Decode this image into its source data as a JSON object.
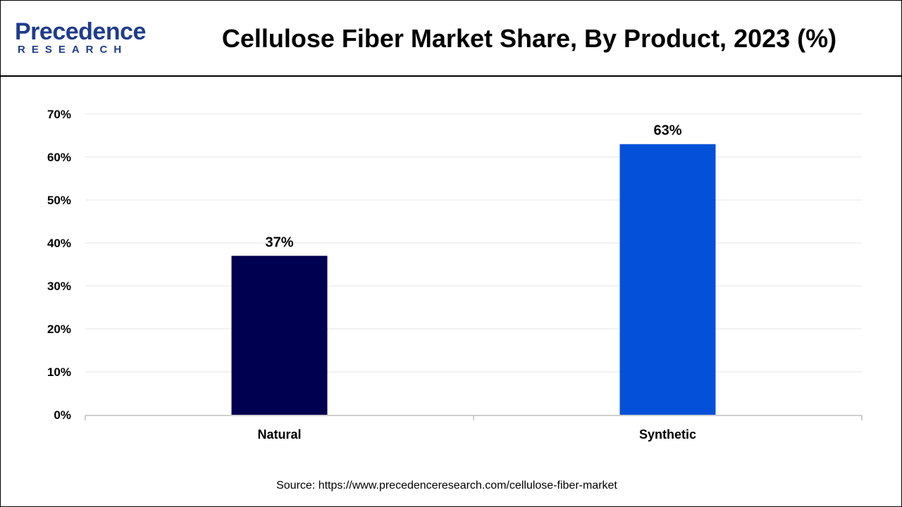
{
  "logo": {
    "wordmark": "Precedence",
    "subline": "RESEARCH"
  },
  "colors": {
    "natural": "#000050",
    "synthetic": "#0550d8",
    "logo": "#1f3c8c"
  },
  "source": "Source: https://www.precedenceresearch.com/cellulose-fiber-market",
  "chart_data": {
    "type": "bar",
    "title": "Cellulose Fiber Market Share, By Product, 2023 (%)",
    "xlabel": "",
    "ylabel": "",
    "categories": [
      "Natural",
      "Synthetic"
    ],
    "values": [
      37,
      63
    ],
    "data_labels": [
      "37%",
      "63%"
    ],
    "ylim": [
      0,
      70
    ],
    "yticks": [
      0,
      10,
      20,
      30,
      40,
      50,
      60,
      70
    ],
    "ytick_labels": [
      "0%",
      "10%",
      "20%",
      "30%",
      "40%",
      "50%",
      "60%",
      "70%"
    ],
    "grid": true,
    "legend": "none"
  }
}
